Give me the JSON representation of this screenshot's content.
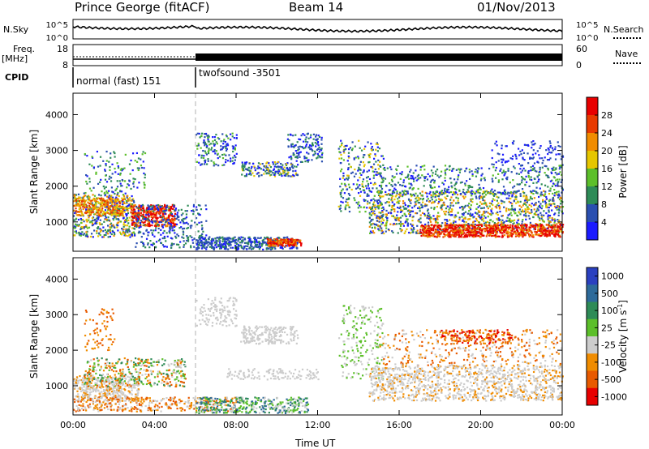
{
  "header": {
    "station": "Prince George (fitACF)",
    "beam": "Beam 14",
    "date": "01/Nov/2013"
  },
  "labels": {
    "nsky": "N.Sky",
    "nsearch": "N.Search",
    "freq": "Freq.",
    "freq_unit": "[MHz]",
    "nave": "Nave",
    "cpid": "CPID",
    "cpid_1": "normal (fast) 151",
    "cpid_2": "twofsound -3501",
    "time_axis": "Time UT"
  },
  "colors": {
    "power": [
      "#1b1bff",
      "#2a4fb0",
      "#2e8b57",
      "#5cbf2a",
      "#e6c600",
      "#f08c00",
      "#e83a00",
      "#e80000"
    ],
    "velocity": [
      "#2a40c0",
      "#2d6a9a",
      "#2e8b57",
      "#5cbf2a",
      "#cccccc",
      "#f08c00",
      "#e85a00",
      "#e80000"
    ]
  },
  "chart_data": [
    {
      "type": "line",
      "name": "noise-panel",
      "y_left_ticks": [
        "10^5",
        "10^0"
      ],
      "y_right_ticks": [
        "10^5",
        "10^0"
      ],
      "xlim": [
        "00:00",
        "24:00"
      ]
    },
    {
      "type": "line",
      "name": "frequency-panel",
      "y_left_ticks": [
        "18",
        "8"
      ],
      "y_right_ticks": [
        "60",
        "0"
      ],
      "xlim": [
        "00:00",
        "24:00"
      ]
    },
    {
      "type": "heatmap",
      "name": "power-panel",
      "ylabel": "Slant Range [km]",
      "ylim": [
        180,
        4600
      ],
      "y_ticks": [
        1000,
        2000,
        3000,
        4000
      ],
      "x_ticks": [
        "00:00",
        "04:00",
        "08:00",
        "12:00",
        "16:00",
        "20:00",
        "00:00"
      ],
      "colorbar": {
        "label": "Power [dB]",
        "ticks": [
          4,
          8,
          12,
          16,
          20,
          24,
          28
        ],
        "range": [
          0,
          32
        ]
      }
    },
    {
      "type": "heatmap",
      "name": "velocity-panel",
      "ylabel": "Slant Range [km]",
      "ylim": [
        180,
        4600
      ],
      "y_ticks": [
        1000,
        2000,
        3000,
        4000
      ],
      "x_ticks": [
        "00:00",
        "04:00",
        "08:00",
        "12:00",
        "16:00",
        "20:00",
        "00:00"
      ],
      "colorbar": {
        "label": "Velocity [m s^-1]",
        "ticks": [
          1000,
          500,
          100,
          25,
          -25,
          -100,
          -500,
          -1000
        ]
      }
    }
  ]
}
